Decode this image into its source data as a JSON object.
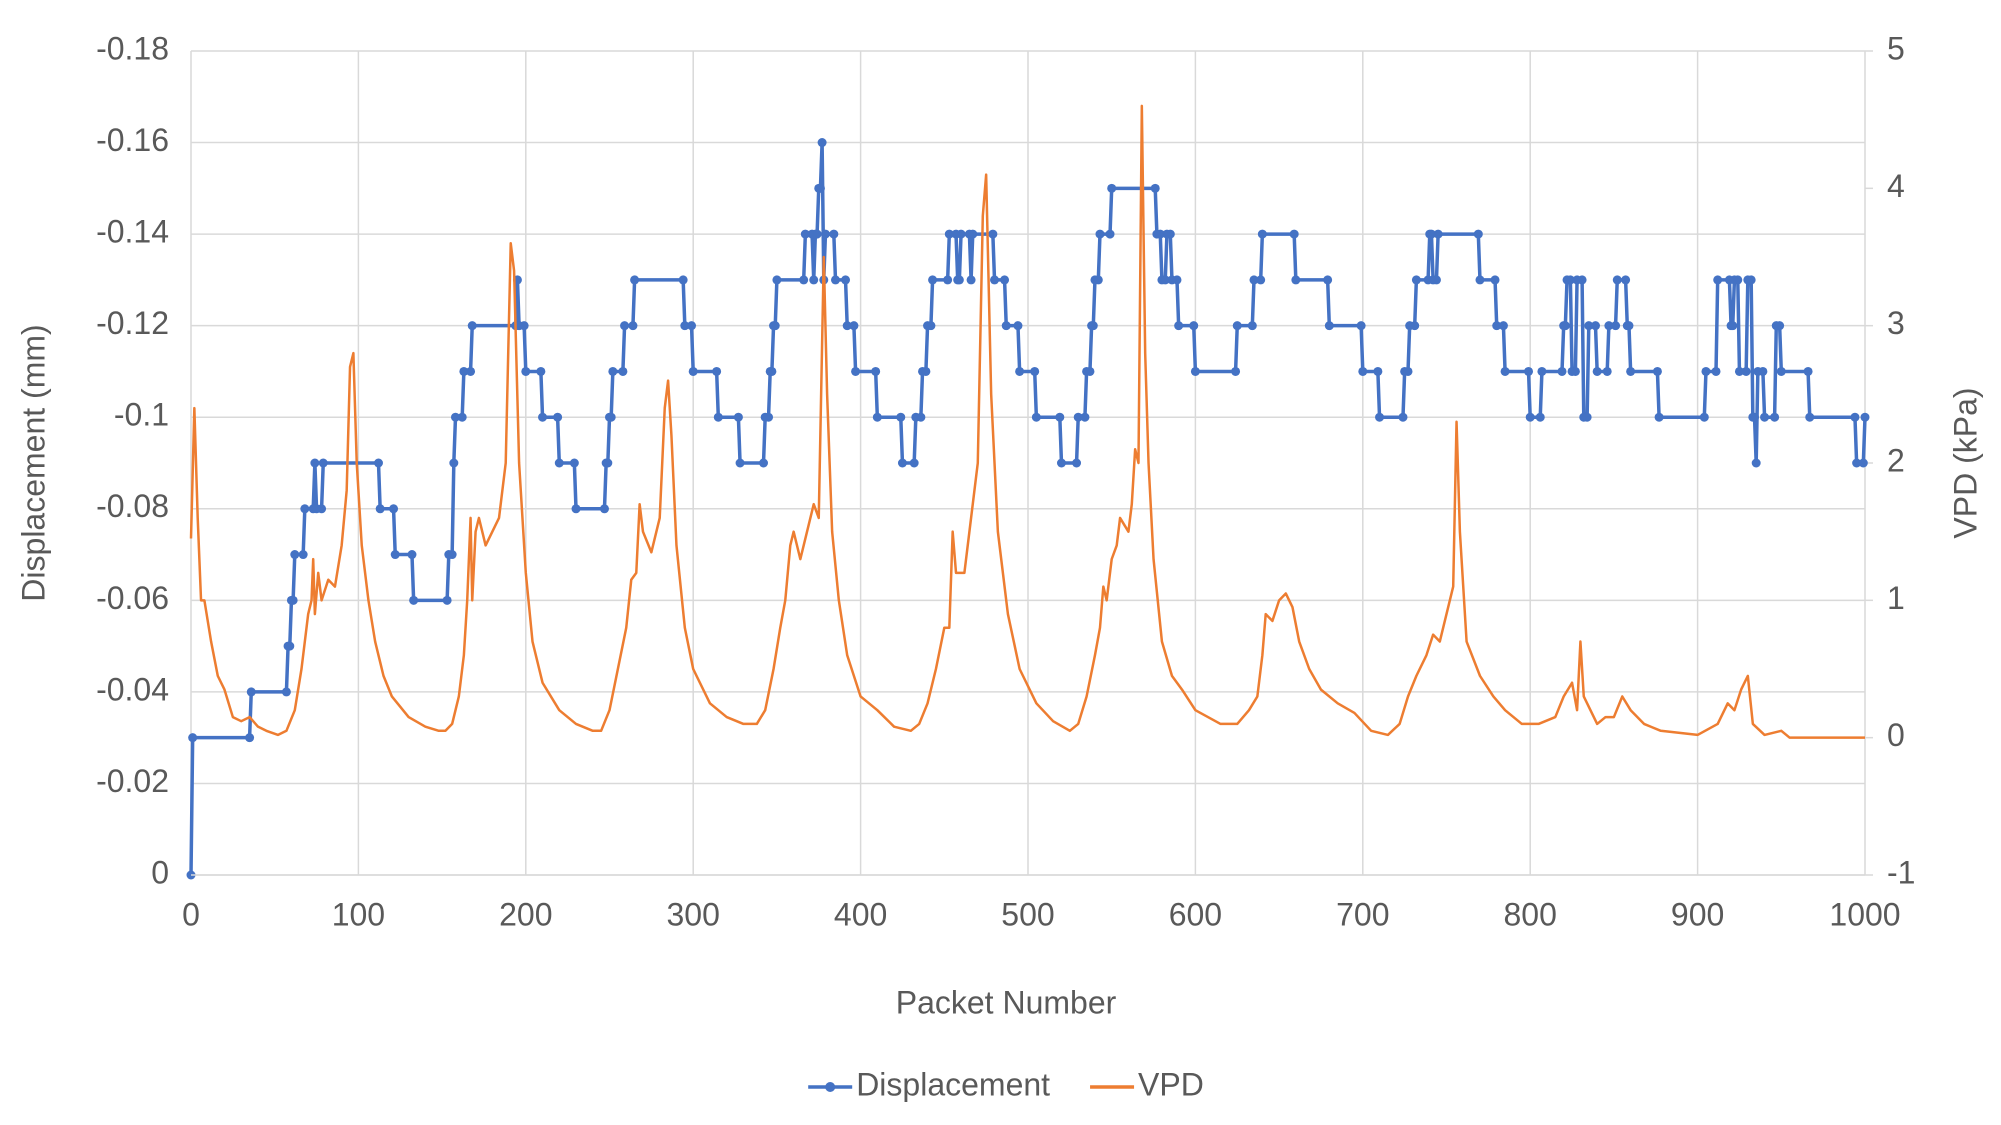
{
  "chart_data": {
    "type": "line",
    "x_label": "Packet Number",
    "y_label": "Displacement (mm)",
    "y2_label": "VPD (kPa)",
    "xlim": [
      0,
      1000
    ],
    "xticks": [
      0,
      100,
      200,
      300,
      400,
      500,
      600,
      700,
      800,
      900,
      1000
    ],
    "ylim": [
      0,
      -0.18
    ],
    "yticks": [
      0,
      -0.02,
      -0.04,
      -0.06,
      -0.08,
      -0.1,
      -0.12,
      -0.14,
      -0.16,
      -0.18
    ],
    "y2lim": [
      -1,
      5
    ],
    "y2ticks": [
      -1,
      0,
      1,
      2,
      3,
      4,
      5
    ],
    "grid": true,
    "legend": "bottom",
    "series": [
      {
        "name": "Displacement",
        "color": "#4472c4",
        "marker": true,
        "x": [
          0,
          1,
          35,
          36,
          57,
          58,
          59,
          60,
          61,
          62,
          67,
          68,
          73,
          74,
          75,
          78,
          79,
          112,
          113,
          121,
          122,
          132,
          133,
          153,
          154,
          156,
          157,
          158,
          162,
          163,
          167,
          168,
          194,
          195,
          196,
          199,
          200,
          209,
          210,
          219,
          220,
          229,
          230,
          247,
          248,
          249,
          250,
          251,
          252,
          258,
          259,
          264,
          265,
          294,
          295,
          299,
          300,
          314,
          315,
          327,
          328,
          342,
          343,
          345,
          346,
          347,
          348,
          349,
          350,
          366,
          367,
          371,
          372,
          373,
          374,
          375,
          376,
          377,
          378,
          379,
          384,
          385,
          391,
          392,
          396,
          397,
          409,
          410,
          424,
          425,
          432,
          433,
          436,
          437,
          439,
          440,
          442,
          443,
          452,
          453,
          457,
          458,
          459,
          460,
          465,
          466,
          467,
          479,
          480,
          486,
          487,
          494,
          495,
          504,
          505,
          519,
          520,
          529,
          530,
          534,
          535,
          537,
          538,
          539,
          540,
          542,
          543,
          549,
          550,
          576,
          577,
          579,
          580,
          582,
          583,
          585,
          586,
          589,
          590,
          599,
          600,
          624,
          625,
          634,
          635,
          639,
          640,
          659,
          660,
          679,
          680,
          699,
          700,
          709,
          710,
          724,
          725,
          727,
          728,
          731,
          732,
          739,
          740,
          741,
          742,
          744,
          745,
          769,
          770,
          779,
          780,
          784,
          785,
          799,
          800,
          806,
          807,
          819,
          820,
          821,
          822,
          824,
          825,
          827,
          828,
          831,
          832,
          834,
          835,
          839,
          840,
          846,
          847,
          851,
          852,
          857,
          858,
          859,
          860,
          876,
          877,
          904,
          905,
          911,
          912,
          919,
          920,
          921,
          922,
          924,
          925,
          929,
          930,
          932,
          933,
          934,
          935,
          936,
          939,
          940,
          946,
          947,
          949,
          950,
          966,
          967,
          994,
          995,
          999,
          1000
        ],
        "values": [
          0,
          -0.03,
          -0.03,
          -0.04,
          -0.04,
          -0.05,
          -0.05,
          -0.06,
          -0.06,
          -0.07,
          -0.07,
          -0.08,
          -0.08,
          -0.09,
          -0.08,
          -0.08,
          -0.09,
          -0.09,
          -0.08,
          -0.08,
          -0.07,
          -0.07,
          -0.06,
          -0.06,
          -0.07,
          -0.07,
          -0.09,
          -0.1,
          -0.1,
          -0.11,
          -0.11,
          -0.12,
          -0.12,
          -0.13,
          -0.12,
          -0.12,
          -0.11,
          -0.11,
          -0.1,
          -0.1,
          -0.09,
          -0.09,
          -0.08,
          -0.08,
          -0.09,
          -0.09,
          -0.1,
          -0.1,
          -0.11,
          -0.11,
          -0.12,
          -0.12,
          -0.13,
          -0.13,
          -0.12,
          -0.12,
          -0.11,
          -0.11,
          -0.1,
          -0.1,
          -0.09,
          -0.09,
          -0.1,
          -0.1,
          -0.11,
          -0.11,
          -0.12,
          -0.12,
          -0.13,
          -0.13,
          -0.14,
          -0.14,
          -0.13,
          -0.14,
          -0.14,
          -0.15,
          -0.15,
          -0.16,
          -0.13,
          -0.14,
          -0.14,
          -0.13,
          -0.13,
          -0.12,
          -0.12,
          -0.11,
          -0.11,
          -0.1,
          -0.1,
          -0.09,
          -0.09,
          -0.1,
          -0.1,
          -0.11,
          -0.11,
          -0.12,
          -0.12,
          -0.13,
          -0.13,
          -0.14,
          -0.14,
          -0.13,
          -0.13,
          -0.14,
          -0.14,
          -0.13,
          -0.14,
          -0.14,
          -0.13,
          -0.13,
          -0.12,
          -0.12,
          -0.11,
          -0.11,
          -0.1,
          -0.1,
          -0.09,
          -0.09,
          -0.1,
          -0.1,
          -0.11,
          -0.11,
          -0.12,
          -0.12,
          -0.13,
          -0.13,
          -0.14,
          -0.14,
          -0.15,
          -0.15,
          -0.14,
          -0.14,
          -0.13,
          -0.13,
          -0.14,
          -0.14,
          -0.13,
          -0.13,
          -0.12,
          -0.12,
          -0.11,
          -0.11,
          -0.12,
          -0.12,
          -0.13,
          -0.13,
          -0.14,
          -0.14,
          -0.13,
          -0.13,
          -0.12,
          -0.12,
          -0.11,
          -0.11,
          -0.1,
          -0.1,
          -0.11,
          -0.11,
          -0.12,
          -0.12,
          -0.13,
          -0.13,
          -0.14,
          -0.14,
          -0.13,
          -0.13,
          -0.14,
          -0.14,
          -0.13,
          -0.13,
          -0.12,
          -0.12,
          -0.11,
          -0.11,
          -0.1,
          -0.1,
          -0.11,
          -0.11,
          -0.12,
          -0.12,
          -0.13,
          -0.13,
          -0.11,
          -0.11,
          -0.13,
          -0.13,
          -0.1,
          -0.1,
          -0.12,
          -0.12,
          -0.11,
          -0.11,
          -0.12,
          -0.12,
          -0.13,
          -0.13,
          -0.12,
          -0.12,
          -0.11,
          -0.11,
          -0.1,
          -0.1,
          -0.11,
          -0.11,
          -0.13,
          -0.13,
          -0.12,
          -0.12,
          -0.13,
          -0.13,
          -0.11,
          -0.11,
          -0.13,
          -0.13,
          -0.1,
          -0.1,
          -0.09,
          -0.11,
          -0.11,
          -0.1,
          -0.1,
          -0.12,
          -0.12,
          -0.11,
          -0.11,
          -0.1,
          -0.1,
          -0.09,
          -0.09,
          -0.1
        ]
      },
      {
        "name": "VPD",
        "color": "#ed7d31",
        "axis": "y2",
        "x": [
          0,
          2,
          4,
          6,
          8,
          12,
          16,
          20,
          25,
          30,
          35,
          40,
          45,
          52,
          57,
          62,
          66,
          70,
          72,
          73,
          74,
          76,
          78,
          82,
          86,
          90,
          93,
          95,
          97,
          99,
          102,
          106,
          110,
          115,
          120,
          130,
          140,
          148,
          152,
          156,
          160,
          163,
          165,
          167,
          168,
          170,
          172,
          176,
          180,
          184,
          188,
          191,
          193,
          196,
          200,
          204,
          210,
          220,
          230,
          240,
          245,
          250,
          255,
          260,
          263,
          266,
          268,
          270,
          275,
          280,
          283,
          285,
          287,
          290,
          295,
          300,
          310,
          320,
          330,
          338,
          343,
          348,
          352,
          355,
          358,
          360,
          364,
          368,
          372,
          375,
          378,
          380,
          383,
          387,
          392,
          400,
          410,
          420,
          430,
          435,
          440,
          445,
          450,
          453,
          455,
          457,
          462,
          466,
          470,
          473,
          475,
          478,
          482,
          488,
          495,
          505,
          515,
          525,
          530,
          535,
          540,
          543,
          545,
          547,
          550,
          553,
          555,
          560,
          562,
          564,
          566,
          568,
          570,
          572,
          575,
          580,
          586,
          592,
          600,
          615,
          625,
          632,
          637,
          640,
          642,
          646,
          650,
          654,
          658,
          662,
          668,
          675,
          685,
          695,
          705,
          715,
          722,
          727,
          732,
          738,
          742,
          746,
          750,
          754,
          756,
          758,
          762,
          770,
          778,
          785,
          795,
          805,
          815,
          820,
          825,
          828,
          830,
          832,
          836,
          840,
          845,
          850,
          855,
          860,
          868,
          878,
          900,
          912,
          918,
          922,
          926,
          930,
          933,
          940,
          950,
          955,
          1000
        ],
        "values": [
          1.45,
          2.4,
          1.6,
          1.0,
          1.0,
          0.7,
          0.45,
          0.35,
          0.15,
          0.12,
          0.15,
          0.08,
          0.05,
          0.02,
          0.05,
          0.2,
          0.5,
          0.9,
          1.0,
          1.3,
          0.9,
          1.2,
          1.0,
          1.15,
          1.1,
          1.4,
          1.8,
          2.7,
          2.8,
          2.0,
          1.4,
          1.0,
          0.7,
          0.45,
          0.3,
          0.15,
          0.08,
          0.05,
          0.05,
          0.1,
          0.3,
          0.6,
          1.0,
          1.6,
          1.0,
          1.5,
          1.6,
          1.4,
          1.5,
          1.6,
          2.0,
          3.6,
          3.4,
          2.0,
          1.2,
          0.7,
          0.4,
          0.2,
          0.1,
          0.05,
          0.05,
          0.2,
          0.5,
          0.8,
          1.15,
          1.2,
          1.7,
          1.5,
          1.35,
          1.6,
          2.4,
          2.6,
          2.2,
          1.4,
          0.8,
          0.5,
          0.25,
          0.15,
          0.1,
          0.1,
          0.2,
          0.5,
          0.8,
          1.0,
          1.4,
          1.5,
          1.3,
          1.5,
          1.7,
          1.6,
          3.5,
          2.5,
          1.5,
          1.0,
          0.6,
          0.3,
          0.2,
          0.08,
          0.05,
          0.1,
          0.25,
          0.5,
          0.8,
          0.8,
          1.5,
          1.2,
          1.2,
          1.6,
          2.0,
          3.8,
          4.1,
          2.5,
          1.5,
          0.9,
          0.5,
          0.25,
          0.12,
          0.05,
          0.1,
          0.3,
          0.6,
          0.8,
          1.1,
          1.0,
          1.3,
          1.4,
          1.6,
          1.5,
          1.7,
          2.1,
          2.0,
          4.6,
          2.8,
          2.0,
          1.3,
          0.7,
          0.45,
          0.35,
          0.2,
          0.1,
          0.1,
          0.2,
          0.3,
          0.6,
          0.9,
          0.85,
          1.0,
          1.05,
          0.95,
          0.7,
          0.5,
          0.35,
          0.25,
          0.18,
          0.05,
          0.02,
          0.1,
          0.3,
          0.45,
          0.6,
          0.75,
          0.7,
          0.9,
          1.1,
          2.3,
          1.5,
          0.7,
          0.45,
          0.3,
          0.2,
          0.1,
          0.1,
          0.15,
          0.3,
          0.4,
          0.2,
          0.7,
          0.3,
          0.2,
          0.1,
          0.15,
          0.15,
          0.3,
          0.2,
          0.1,
          0.05,
          0.02,
          0.1,
          0.25,
          0.2,
          0.35,
          0.45,
          0.1,
          0.02,
          0.05,
          0.0,
          0.0
        ]
      }
    ]
  }
}
